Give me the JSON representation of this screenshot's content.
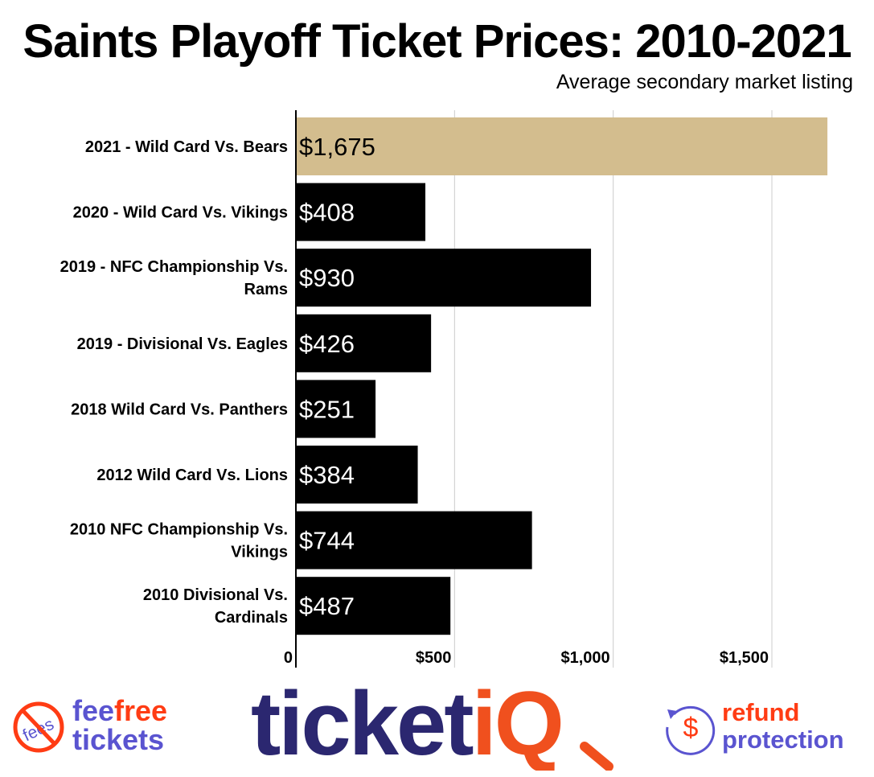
{
  "chart_data": {
    "type": "bar",
    "orientation": "horizontal",
    "title": "Saints Playoff Ticket Prices: 2010-2021",
    "subtitle": "Average secondary market listing",
    "categories": [
      "2021 - Wild Card Vs. Bears",
      "2020 - Wild Card Vs. Vikings",
      "2019 - NFC Championship Vs. Rams",
      "2019 - Divisional Vs. Eagles",
      "2018 Wild Card Vs. Panthers",
      "2012 Wild Card Vs. Lions",
      "2010 NFC Championship Vs. Vikings",
      "2010 Divisional Vs. Cardinals"
    ],
    "values": [
      1675,
      408,
      930,
      426,
      251,
      384,
      744,
      487
    ],
    "data_labels": [
      "$1,675",
      "$408",
      "$930",
      "$426",
      "$251",
      "$384",
      "$744",
      "$487"
    ],
    "bar_colors": [
      "#d3bd8e",
      "#000000",
      "#000000",
      "#000000",
      "#000000",
      "#000000",
      "#000000",
      "#000000"
    ],
    "label_colors": [
      "#000000",
      "#ffffff",
      "#ffffff",
      "#ffffff",
      "#ffffff",
      "#ffffff",
      "#ffffff",
      "#ffffff"
    ],
    "xlim": [
      0,
      1700
    ],
    "xticks": [
      0,
      500,
      1000,
      1500
    ],
    "xtick_labels": [
      "0",
      "$500",
      "$1,000",
      "$1,500"
    ],
    "grid": true,
    "xlabel": "",
    "ylabel": ""
  },
  "logos": {
    "feefree": {
      "no_sign_text": "fees",
      "word1a": "fee",
      "word1b": "free",
      "word2": "tickets"
    },
    "ticketiq": {
      "part1": "ticket",
      "part2": "iQ"
    },
    "refund": {
      "symbol": "$",
      "word1": "refund",
      "word2": "protection"
    },
    "colors": {
      "navy": "#2b2770",
      "orange": "#f0501e",
      "purple": "#5a54d0",
      "red": "#ff3c14"
    }
  }
}
